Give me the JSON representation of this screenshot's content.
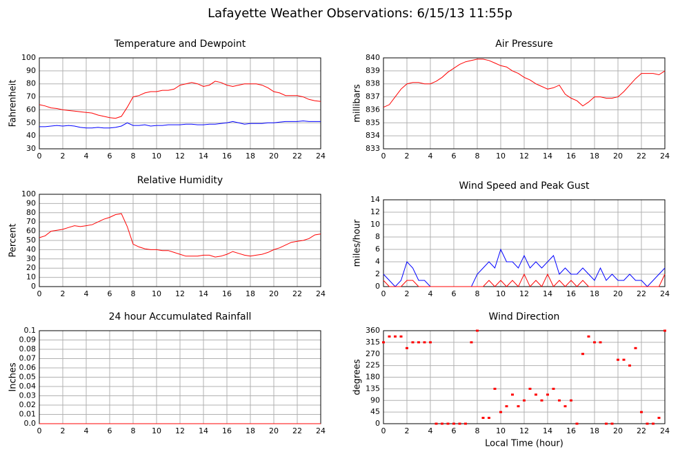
{
  "title": "Lafayette Weather Observations: 6/15/13 11:55p",
  "chart_data": [
    {
      "type": "line",
      "title": "Temperature and Dewpoint",
      "y_label": "Fahrenheit",
      "x": [
        0,
        0.5,
        1,
        1.5,
        2,
        2.5,
        3,
        3.5,
        4,
        4.5,
        5,
        5.5,
        6,
        6.5,
        7,
        7.5,
        8,
        8.5,
        9,
        9.5,
        10,
        10.5,
        11,
        11.5,
        12,
        12.5,
        13,
        13.5,
        14,
        14.5,
        15,
        15.5,
        16,
        16.5,
        17,
        17.5,
        18,
        18.5,
        19,
        19.5,
        20,
        20.5,
        21,
        21.5,
        22,
        22.5,
        23,
        23.5,
        24
      ],
      "series": [
        {
          "color": "#ff0000",
          "values": [
            64,
            63,
            61.5,
            61,
            60,
            59.5,
            59,
            58.5,
            58,
            57.5,
            56,
            55,
            54,
            53.5,
            55,
            62,
            70,
            71,
            73,
            74,
            74,
            75,
            75,
            76,
            79,
            80,
            81,
            80,
            78,
            79,
            82,
            81,
            79,
            78,
            79,
            80,
            80,
            80,
            79,
            77,
            74,
            73,
            71,
            71,
            71,
            70,
            68,
            67,
            66.5
          ]
        },
        {
          "color": "#0000ff",
          "values": [
            47,
            47,
            47.5,
            48,
            47.5,
            48,
            47.5,
            46.5,
            46,
            46,
            46.5,
            46,
            46,
            46.5,
            47.5,
            50,
            48,
            48,
            48.5,
            47.5,
            48,
            48,
            48.5,
            48.5,
            48.5,
            49,
            49,
            48.5,
            48.5,
            49,
            49,
            49.5,
            50,
            51,
            50,
            49,
            49.5,
            49.5,
            49.5,
            50,
            50,
            50.5,
            51,
            51,
            51,
            51.5,
            51,
            51,
            51
          ]
        }
      ],
      "xlim": [
        0,
        24
      ],
      "xticks": [
        0,
        2,
        4,
        6,
        8,
        10,
        12,
        14,
        16,
        18,
        20,
        22,
        24
      ],
      "ylim": [
        30,
        100
      ],
      "yticks": [
        30,
        40,
        50,
        60,
        70,
        80,
        90,
        100
      ],
      "grid": true
    },
    {
      "type": "line",
      "title": "Air Pressure",
      "y_label": "millibars",
      "x": [
        0,
        0.5,
        1,
        1.5,
        2,
        2.5,
        3,
        3.5,
        4,
        4.5,
        5,
        5.5,
        6,
        6.5,
        7,
        7.5,
        8,
        8.5,
        9,
        9.5,
        10,
        10.5,
        11,
        11.5,
        12,
        12.5,
        13,
        13.5,
        14,
        14.5,
        15,
        15.5,
        16,
        16.5,
        17,
        17.5,
        18,
        18.5,
        19,
        19.5,
        20,
        20.5,
        21,
        21.5,
        22,
        22.5,
        23,
        23.5,
        24
      ],
      "series": [
        {
          "color": "#ff0000",
          "values": [
            836.2,
            836.4,
            837,
            837.6,
            838,
            838.1,
            838.1,
            838,
            838,
            838.2,
            838.5,
            838.9,
            839.2,
            839.5,
            839.7,
            839.8,
            839.9,
            839.9,
            839.8,
            839.6,
            839.4,
            839.3,
            839,
            838.8,
            838.5,
            838.3,
            838,
            837.8,
            837.6,
            837.7,
            837.9,
            837.2,
            836.9,
            836.7,
            836.3,
            836.6,
            837,
            837,
            836.9,
            836.9,
            837,
            837.4,
            837.9,
            838.4,
            838.8,
            838.8,
            838.8,
            838.7,
            839
          ]
        }
      ],
      "xlim": [
        0,
        24
      ],
      "xticks": [
        0,
        2,
        4,
        6,
        8,
        10,
        12,
        14,
        16,
        18,
        20,
        22,
        24
      ],
      "ylim": [
        833,
        840
      ],
      "yticks": [
        833,
        834,
        835,
        836,
        837,
        838,
        839,
        840
      ],
      "grid": true
    },
    {
      "type": "line",
      "title": "Relative Humidity",
      "y_label": "Percent",
      "x": [
        0,
        0.5,
        1,
        1.5,
        2,
        2.5,
        3,
        3.5,
        4,
        4.5,
        5,
        5.5,
        6,
        6.5,
        7,
        7.5,
        8,
        8.5,
        9,
        9.5,
        10,
        10.5,
        11,
        11.5,
        12,
        12.5,
        13,
        13.5,
        14,
        14.5,
        15,
        15.5,
        16,
        16.5,
        17,
        17.5,
        18,
        18.5,
        19,
        19.5,
        20,
        20.5,
        21,
        21.5,
        22,
        22.5,
        23,
        23.5,
        24
      ],
      "series": [
        {
          "color": "#ff0000",
          "values": [
            53,
            55,
            60,
            61,
            62,
            64,
            66,
            65,
            66,
            67,
            70,
            73,
            75,
            78,
            79,
            65,
            46,
            43,
            41,
            40,
            40,
            39,
            39,
            37,
            35,
            33,
            33,
            33,
            34,
            34,
            32,
            33,
            35,
            38,
            36,
            34,
            33,
            34,
            35,
            37,
            40,
            42,
            45,
            48,
            49,
            50,
            52,
            56,
            57
          ]
        }
      ],
      "xlim": [
        0,
        24
      ],
      "xticks": [
        0,
        2,
        4,
        6,
        8,
        10,
        12,
        14,
        16,
        18,
        20,
        22,
        24
      ],
      "ylim": [
        0,
        100
      ],
      "yticks": [
        0,
        10,
        20,
        30,
        40,
        50,
        60,
        70,
        80,
        90,
        100
      ],
      "grid": true
    },
    {
      "type": "line",
      "title": "Wind Speed and Peak Gust",
      "y_label": "miles/hour",
      "x": [
        0,
        0.5,
        1,
        1.5,
        2,
        2.5,
        3,
        3.5,
        4,
        4.5,
        5,
        5.5,
        6,
        6.5,
        7,
        7.5,
        8,
        8.5,
        9,
        9.5,
        10,
        10.5,
        11,
        11.5,
        12,
        12.5,
        13,
        13.5,
        14,
        14.5,
        15,
        15.5,
        16,
        16.5,
        17,
        17.5,
        18,
        18.5,
        19,
        19.5,
        20,
        20.5,
        21,
        21.5,
        22,
        22.5,
        23,
        23.5,
        24
      ],
      "series": [
        {
          "color": "#0000ff",
          "values": [
            2,
            1,
            0,
            1,
            4,
            3,
            1,
            1,
            0,
            0,
            0,
            0,
            0,
            0,
            0,
            0,
            2,
            3,
            4,
            3,
            6,
            4,
            4,
            3,
            5,
            3,
            4,
            3,
            4,
            5,
            2,
            3,
            2,
            2,
            3,
            2,
            1,
            3,
            1,
            2,
            1,
            1,
            2,
            1,
            1,
            0,
            1,
            2,
            3
          ]
        },
        {
          "color": "#ff0000",
          "values": [
            1,
            0,
            0,
            0,
            1,
            1,
            0,
            0,
            0,
            0,
            0,
            0,
            0,
            0,
            0,
            0,
            0,
            0,
            1,
            0,
            1,
            0,
            1,
            0,
            2,
            0,
            1,
            0,
            2,
            0,
            1,
            0,
            1,
            0,
            1,
            0,
            0,
            0,
            0,
            0,
            0,
            0,
            0,
            0,
            0,
            0,
            0,
            0,
            2
          ]
        }
      ],
      "xlim": [
        0,
        24
      ],
      "xticks": [
        0,
        2,
        4,
        6,
        8,
        10,
        12,
        14,
        16,
        18,
        20,
        22,
        24
      ],
      "ylim": [
        0,
        14
      ],
      "yticks": [
        0,
        2,
        4,
        6,
        8,
        10,
        12,
        14
      ],
      "grid": true
    },
    {
      "type": "line",
      "title": "24 hour Accumulated Rainfall",
      "y_label": "Inches",
      "x": [
        0,
        24
      ],
      "series": [
        {
          "color": "#ff0000",
          "values": [
            0,
            0
          ]
        }
      ],
      "xlim": [
        0,
        24
      ],
      "xticks": [
        0,
        2,
        4,
        6,
        8,
        10,
        12,
        14,
        16,
        18,
        20,
        22,
        24
      ],
      "ylim": [
        0,
        0.1
      ],
      "yticks": [
        {
          "value": 0,
          "label": "0.0"
        },
        0.01,
        0.02,
        0.03,
        0.04,
        0.05,
        0.06,
        0.07,
        0.08,
        0.09,
        0.1
      ],
      "grid": true
    },
    {
      "type": "scatter",
      "title": "Wind Direction",
      "y_label": "degrees",
      "x_label": "Local Time (hour)",
      "x": [
        0,
        0.5,
        1,
        1.5,
        2,
        2.5,
        3,
        3.5,
        4,
        4.5,
        5,
        5.5,
        6,
        6.5,
        7,
        7.5,
        8,
        8.5,
        9,
        9.5,
        10,
        10.5,
        11,
        11.5,
        12,
        12.5,
        13,
        13.5,
        14,
        14.5,
        15,
        15.5,
        16,
        16.5,
        17,
        17.5,
        18,
        18.5,
        19,
        19.5,
        20,
        20.5,
        21,
        21.5,
        22,
        22.5,
        23,
        23.5,
        24
      ],
      "series": [
        {
          "color": "#ff0000",
          "values": [
            315,
            337.5,
            337.5,
            337.5,
            292.5,
            315,
            315,
            315,
            315,
            0,
            0,
            0,
            0,
            0,
            0,
            315,
            360,
            22.5,
            22.5,
            135,
            45,
            67.5,
            112.5,
            67.5,
            90,
            135,
            112.5,
            90,
            112.5,
            135,
            90,
            67.5,
            90,
            0,
            270,
            337.5,
            315,
            315,
            0,
            0,
            247.5,
            247.5,
            225,
            292.5,
            45,
            0,
            0,
            22.5,
            360
          ]
        }
      ],
      "xlim": [
        0,
        24
      ],
      "xticks": [
        0,
        2,
        4,
        6,
        8,
        10,
        12,
        14,
        16,
        18,
        20,
        22,
        24
      ],
      "ylim": [
        0,
        360
      ],
      "yticks": [
        0,
        45,
        90,
        135,
        180,
        225,
        270,
        315,
        360
      ],
      "grid": true
    }
  ]
}
